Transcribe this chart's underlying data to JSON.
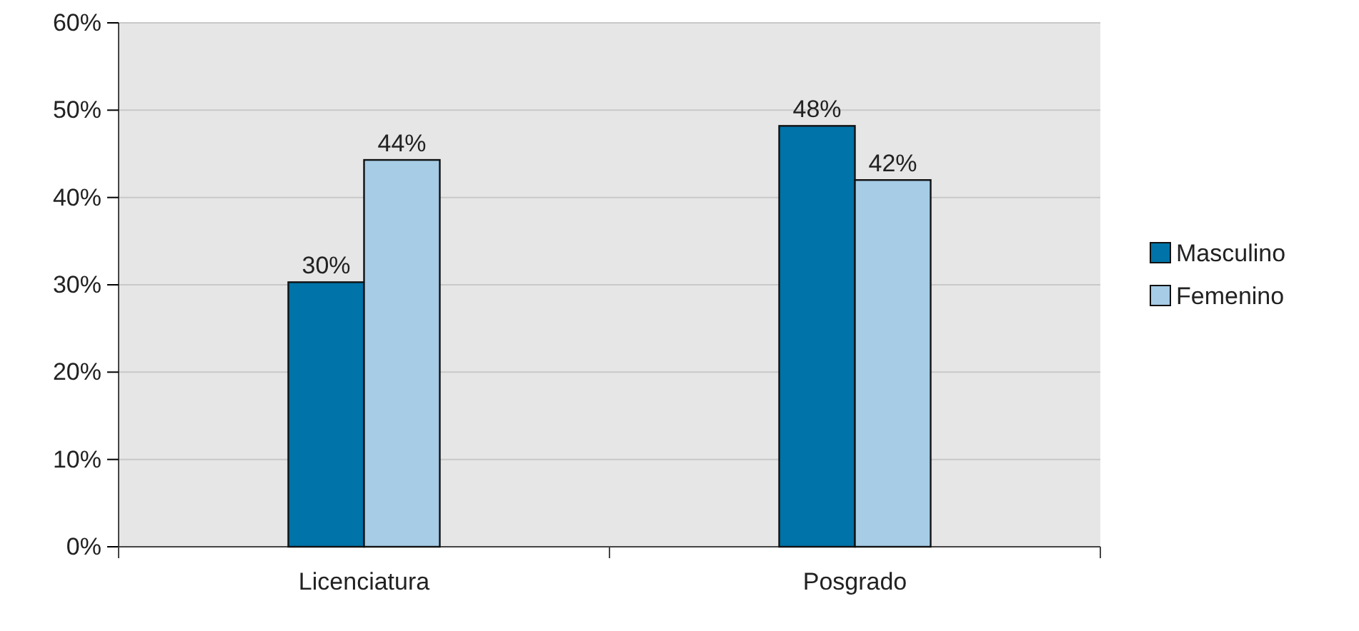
{
  "chart_data": {
    "type": "bar",
    "categories": [
      "Licenciatura",
      "Posgrado"
    ],
    "series": [
      {
        "name": "Masculino",
        "color": "#0073a8",
        "values": [
          30.3,
          48.2
        ],
        "value_labels": [
          "30%",
          "48%"
        ]
      },
      {
        "name": "Femenino",
        "color": "#a6cce6",
        "values": [
          44.3,
          42
        ],
        "value_labels": [
          "44%",
          "42%"
        ]
      }
    ],
    "ylim": [
      0,
      60
    ],
    "yticks": [
      {
        "value": 0,
        "label": "0%"
      },
      {
        "value": 10,
        "label": "10%"
      },
      {
        "value": 20,
        "label": "20%"
      },
      {
        "value": 30,
        "label": "30%"
      },
      {
        "value": 40,
        "label": "40%"
      },
      {
        "value": 50,
        "label": "50%"
      },
      {
        "value": 60,
        "label": "60%"
      }
    ],
    "grid": "y",
    "legend": "right"
  }
}
